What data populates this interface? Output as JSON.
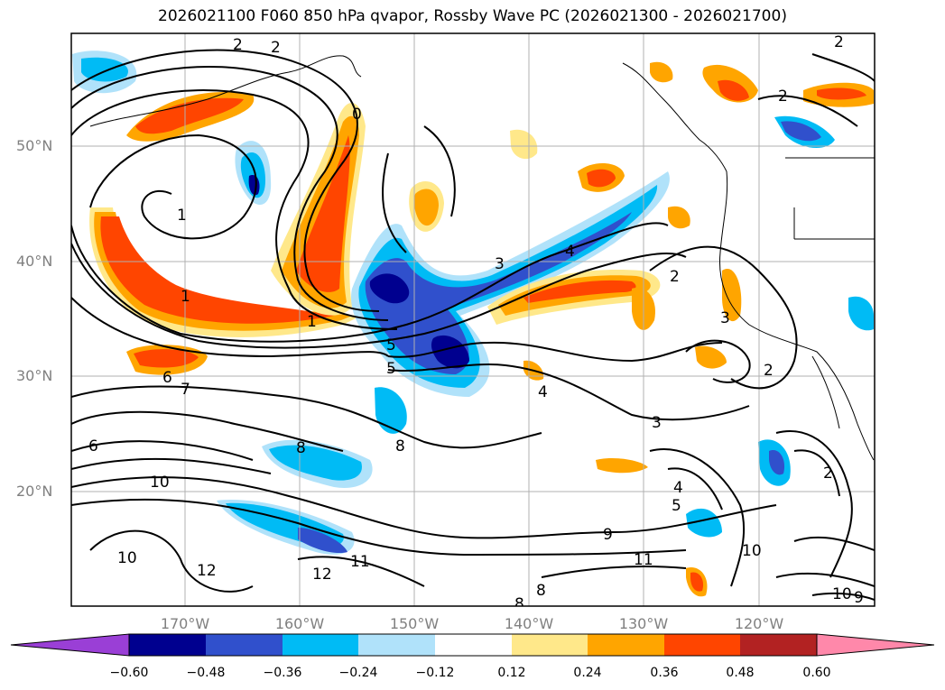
{
  "title": "2026021100 F060 850 hPa qvapor, Rossby Wave PC (2026021300 - 2026021700)",
  "lat_labels": [
    "50°N",
    "40°N",
    "30°N",
    "20°N"
  ],
  "lon_labels": [
    "170°W",
    "160°W",
    "150°W",
    "140°W",
    "130°W",
    "120°W"
  ],
  "colorbar": {
    "ticks": [
      "−0.60",
      "−0.48",
      "−0.36",
      "−0.24",
      "−0.12",
      "0.12",
      "0.24",
      "0.36",
      "0.48",
      "0.60"
    ],
    "colors": [
      "#9a3fd6",
      "#00008f",
      "#3050cc",
      "#00bbf5",
      "#b0e2fa",
      "#ffffff",
      "#ffe88a",
      "#ffa500",
      "#ff4500",
      "#b22222",
      "#ff88aa"
    ]
  },
  "contour_labels": [
    "2",
    "2",
    "0",
    "1",
    "1",
    "1",
    "2",
    "2",
    "3",
    "4",
    "5",
    "5",
    "4",
    "3",
    "2",
    "2",
    "3",
    "6",
    "7",
    "6",
    "8",
    "8",
    "10",
    "10",
    "12",
    "12",
    "11",
    "9",
    "11",
    "4",
    "5",
    "10",
    "2",
    "8",
    "8",
    "10",
    "9"
  ]
}
